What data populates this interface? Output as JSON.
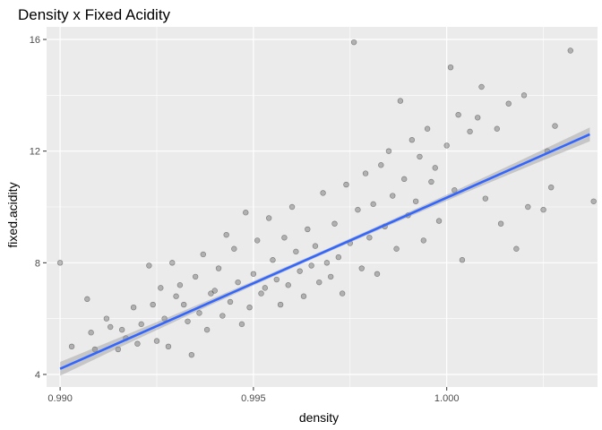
{
  "chart_data": {
    "type": "scatter",
    "title": "Density x Fixed Acidity",
    "xlabel": "density",
    "ylabel": "fixed.acidity",
    "xlim": [
      0.98965,
      1.0039
    ],
    "ylim": [
      3.55,
      16.45
    ],
    "x_ticks": [
      0.99,
      0.995,
      1.0
    ],
    "x_tick_labels": [
      "0.990",
      "0.995",
      "1.000"
    ],
    "y_ticks": [
      4,
      8,
      12,
      16
    ],
    "y_tick_labels": [
      "4",
      "8",
      "12",
      "16"
    ],
    "grid": true,
    "n_points_approx": 1599,
    "point_color": "#000000",
    "point_opacity": 0.25,
    "panel_background": "#ebebeb",
    "grid_color": "#ffffff",
    "trend_line": {
      "method": "linear",
      "x": [
        0.99,
        1.0037
      ],
      "y": [
        4.2,
        12.6
      ],
      "color": "#3366ff",
      "ribbon_color": "#999999"
    },
    "points": [
      [
        0.99,
        8.0
      ],
      [
        0.9903,
        5.0
      ],
      [
        0.9907,
        6.7
      ],
      [
        0.9908,
        5.5
      ],
      [
        0.9909,
        4.9
      ],
      [
        0.9912,
        6.0
      ],
      [
        0.9913,
        5.7
      ],
      [
        0.9915,
        4.9
      ],
      [
        0.9916,
        5.6
      ],
      [
        0.9917,
        5.3
      ],
      [
        0.9919,
        6.4
      ],
      [
        0.992,
        5.1
      ],
      [
        0.9921,
        5.8
      ],
      [
        0.9923,
        7.9
      ],
      [
        0.9924,
        6.5
      ],
      [
        0.9925,
        5.2
      ],
      [
        0.9926,
        7.1
      ],
      [
        0.9927,
        6.0
      ],
      [
        0.9928,
        5.0
      ],
      [
        0.9929,
        8.0
      ],
      [
        0.993,
        6.8
      ],
      [
        0.9931,
        7.2
      ],
      [
        0.9932,
        6.5
      ],
      [
        0.9933,
        5.9
      ],
      [
        0.9934,
        4.7
      ],
      [
        0.9935,
        7.5
      ],
      [
        0.9936,
        6.2
      ],
      [
        0.9937,
        8.3
      ],
      [
        0.9938,
        5.6
      ],
      [
        0.9939,
        6.9
      ],
      [
        0.994,
        7.0
      ],
      [
        0.9941,
        7.8
      ],
      [
        0.9942,
        6.1
      ],
      [
        0.9943,
        9.0
      ],
      [
        0.9944,
        6.6
      ],
      [
        0.9945,
        8.5
      ],
      [
        0.9946,
        7.3
      ],
      [
        0.9947,
        5.8
      ],
      [
        0.9948,
        9.8
      ],
      [
        0.9949,
        6.4
      ],
      [
        0.995,
        7.6
      ],
      [
        0.9951,
        8.8
      ],
      [
        0.9952,
        6.9
      ],
      [
        0.9953,
        7.1
      ],
      [
        0.9954,
        9.6
      ],
      [
        0.9955,
        8.1
      ],
      [
        0.9956,
        7.4
      ],
      [
        0.9957,
        6.5
      ],
      [
        0.9958,
        8.9
      ],
      [
        0.9959,
        7.2
      ],
      [
        0.996,
        10.0
      ],
      [
        0.9961,
        8.4
      ],
      [
        0.9962,
        7.7
      ],
      [
        0.9963,
        6.8
      ],
      [
        0.9964,
        9.2
      ],
      [
        0.9965,
        7.9
      ],
      [
        0.9966,
        8.6
      ],
      [
        0.9967,
        7.3
      ],
      [
        0.9968,
        10.5
      ],
      [
        0.9969,
        8.0
      ],
      [
        0.997,
        7.5
      ],
      [
        0.9971,
        9.4
      ],
      [
        0.9972,
        8.2
      ],
      [
        0.9973,
        6.9
      ],
      [
        0.9974,
        10.8
      ],
      [
        0.9975,
        8.7
      ],
      [
        0.9976,
        15.9
      ],
      [
        0.9977,
        9.9
      ],
      [
        0.9978,
        7.8
      ],
      [
        0.9979,
        11.2
      ],
      [
        0.998,
        8.9
      ],
      [
        0.9981,
        10.1
      ],
      [
        0.9982,
        7.6
      ],
      [
        0.9983,
        11.5
      ],
      [
        0.9984,
        9.3
      ],
      [
        0.9985,
        12.0
      ],
      [
        0.9986,
        10.4
      ],
      [
        0.9987,
        8.5
      ],
      [
        0.9988,
        13.8
      ],
      [
        0.9989,
        11.0
      ],
      [
        0.999,
        9.7
      ],
      [
        0.9991,
        12.4
      ],
      [
        0.9992,
        10.2
      ],
      [
        0.9993,
        11.8
      ],
      [
        0.9994,
        8.8
      ],
      [
        0.9995,
        12.8
      ],
      [
        0.9996,
        10.9
      ],
      [
        0.9997,
        11.4
      ],
      [
        0.9998,
        9.5
      ],
      [
        1.0,
        12.2
      ],
      [
        1.0001,
        15.0
      ],
      [
        1.0002,
        10.6
      ],
      [
        1.0003,
        13.3
      ],
      [
        1.0004,
        8.1
      ],
      [
        1.0006,
        12.7
      ],
      [
        1.0008,
        13.2
      ],
      [
        1.0009,
        14.3
      ],
      [
        1.001,
        10.3
      ],
      [
        1.0013,
        12.8
      ],
      [
        1.0014,
        9.4
      ],
      [
        1.0016,
        13.7
      ],
      [
        1.0018,
        8.5
      ],
      [
        1.002,
        14.0
      ],
      [
        1.0021,
        10.0
      ],
      [
        1.0025,
        9.9
      ],
      [
        1.0026,
        12.0
      ],
      [
        1.0027,
        10.7
      ],
      [
        1.0028,
        12.9
      ],
      [
        1.0032,
        15.6
      ],
      [
        1.0038,
        10.2
      ]
    ]
  }
}
